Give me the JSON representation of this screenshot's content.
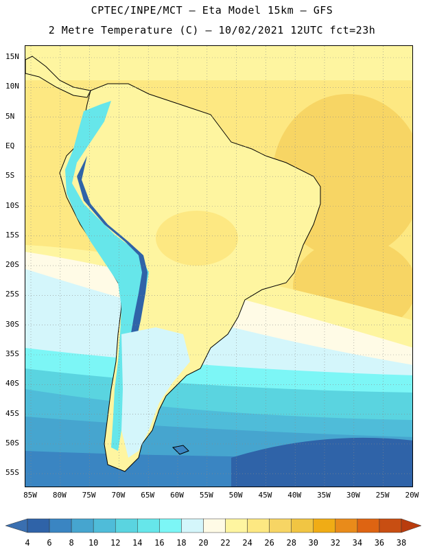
{
  "header": {
    "title_line1": "CPTEC/INPE/MCT –  Eta Model 15km – GFS",
    "title_line2": "2 Metre Temperature (C) – 10/02/2021 12UTC fct=23h"
  },
  "map": {
    "lat_labels": [
      "15N",
      "10N",
      "5N",
      "EQ",
      "5S",
      "10S",
      "15S",
      "20S",
      "25S",
      "30S",
      "35S",
      "40S",
      "45S",
      "50S",
      "55S"
    ],
    "lon_labels": [
      "85W",
      "80W",
      "75W",
      "70W",
      "65W",
      "60W",
      "55W",
      "50W",
      "45W",
      "40W",
      "35W",
      "30W",
      "25W",
      "20W"
    ]
  },
  "colorbar": {
    "levels": [
      "4",
      "6",
      "8",
      "10",
      "12",
      "14",
      "16",
      "18",
      "20",
      "22",
      "24",
      "26",
      "28",
      "30",
      "32",
      "34",
      "36",
      "38"
    ],
    "colors": [
      "#3a6fb0",
      "#2f63a8",
      "#3a85c2",
      "#46a5cf",
      "#4fbcd9",
      "#5ad4e0",
      "#66e6ea",
      "#7cf6f6",
      "#d4f6fb",
      "#fffbe6",
      "#fef5a0",
      "#fde882",
      "#f7d564",
      "#f1c543",
      "#f0ac15",
      "#e98b1a",
      "#de6412",
      "#c84e12",
      "#b93c0e"
    ]
  }
}
